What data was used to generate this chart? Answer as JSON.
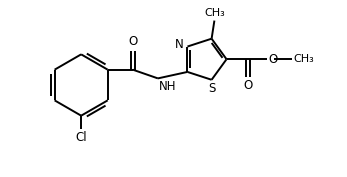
{
  "background": "#ffffff",
  "bond_color": "#000000",
  "bond_lw": 1.4,
  "text_color": "#000000",
  "font_size": 8.5,
  "fig_width": 3.47,
  "fig_height": 1.77,
  "xlim": [
    0,
    9.5
  ],
  "ylim": [
    0.2,
    5.2
  ]
}
